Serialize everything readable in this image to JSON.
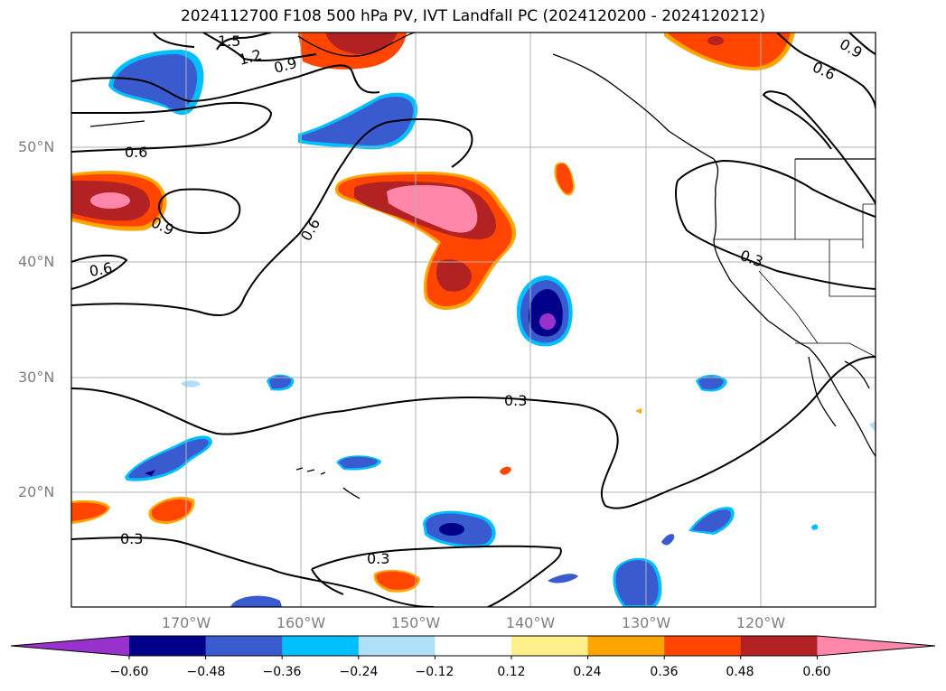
{
  "title": "2024112700 F108 500 hPa PV, IVT Landfall PC (2024120200 - 2024120212)",
  "lat_labels": [
    "50°N",
    "40°N",
    "30°N",
    "20°N"
  ],
  "lon_labels": [
    "170°W",
    "160°W",
    "150°W",
    "140°W",
    "130°W",
    "120°W"
  ],
  "contour_labels": [
    "1.5",
    "1.2",
    "0.9",
    "0.9",
    "0.6",
    "0.6",
    "0.9",
    "0.6",
    "0.6",
    "0.3",
    "0.3",
    "0.3",
    "0.3"
  ],
  "colorbar": {
    "ticks": [
      "−0.60",
      "−0.48",
      "−0.36",
      "−0.24",
      "−0.12",
      "0.12",
      "0.24",
      "0.36",
      "0.48",
      "0.60"
    ],
    "colors": [
      "#9932cc",
      "#00008b",
      "#3a5bcf",
      "#00bfff",
      "#b0e0f8",
      "#ffffff",
      "#fff08c",
      "#ffa500",
      "#ff4500",
      "#b22222",
      "#ff88aa"
    ]
  }
}
